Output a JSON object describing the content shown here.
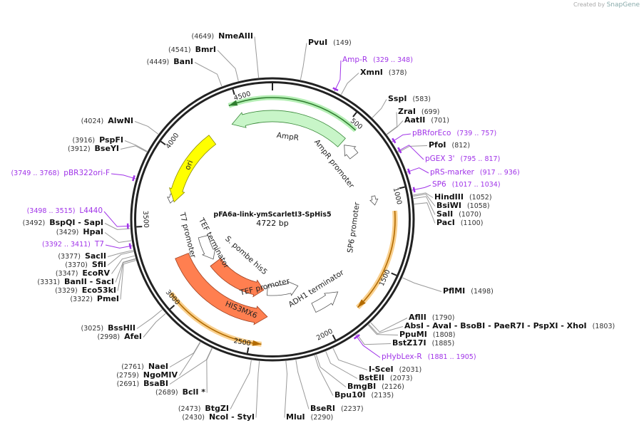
{
  "credit": {
    "prefix": "Created by",
    "brand": "SnapGene"
  },
  "plasmid": {
    "name": "pFA6a-link-ymScarletI3-SpHis5",
    "length_label": "4722 bp",
    "length": 4722
  },
  "ring": {
    "ticks": [
      "500",
      "1000",
      "1500",
      "2000",
      "2500",
      "3000",
      "3500",
      "4000",
      "4500"
    ]
  },
  "colors": {
    "ampr": "#c8f5c8",
    "ampr_edge": "#3a8a3a",
    "ori": "#ffff00",
    "marker": "#ff7f50",
    "promoter": "#ffffff",
    "primer": "#a033e8",
    "highlight_green": "#9be39b",
    "highlight_orange": "#f7c67a"
  },
  "features": [
    {
      "name": "AmpR",
      "start": 4420,
      "end": 551,
      "dir": "rev",
      "kind": "ampr"
    },
    {
      "name": "AmpR promoter",
      "start": 577,
      "end": 682,
      "dir": "rev",
      "kind": "promoter"
    },
    {
      "name": "SP6 promoter",
      "start": 1010,
      "end": 1076,
      "dir": "fwd",
      "kind": "promoter"
    },
    {
      "name": "ADH1 terminator",
      "start": 1810,
      "end": 2033,
      "dir": "rev",
      "kind": "promoter"
    },
    {
      "name": "TEF promoter",
      "start": 2086,
      "end": 2414,
      "dir": "rev",
      "kind": "promoter"
    },
    {
      "name": "HIS3MX6",
      "start": 2400,
      "end": 3253,
      "dir": "rev",
      "kind": "marker"
    },
    {
      "name": "S. pombe his5",
      "start": 2453,
      "end": 3056,
      "dir": "rev",
      "kind": "marker"
    },
    {
      "name": "TEF terminator",
      "start": 3096,
      "end": 3358,
      "dir": "rev",
      "kind": "promoter"
    },
    {
      "name": "T7 promoter",
      "start": 3660,
      "end": 3725,
      "dir": "rev",
      "kind": "promoter"
    },
    {
      "name": "ori",
      "start": 3673,
      "end": 4237,
      "dir": "rev",
      "kind": "ori"
    }
  ],
  "highlights": [
    {
      "start": 4447,
      "end": 564,
      "dir": "rev",
      "kind": "green"
    },
    {
      "start": 1128,
      "end": 1784,
      "dir": "fwd",
      "kind": "orange"
    },
    {
      "start": 2427,
      "end": 3069,
      "dir": "rev",
      "kind": "orange"
    }
  ],
  "sites": [
    {
      "name": "NmeAIII",
      "pos": 4649,
      "label": "(4649)"
    },
    {
      "name": "BmrI",
      "pos": 4541,
      "label": "(4541)"
    },
    {
      "name": "BanI",
      "pos": 4449,
      "label": "(4449)"
    },
    {
      "name": "PvuI",
      "pos": 149,
      "label": "(149)"
    },
    {
      "name": "XmnI",
      "pos": 378,
      "label": "(378)"
    },
    {
      "name": "SspI",
      "pos": 583,
      "label": "(583)"
    },
    {
      "name": "ZraI",
      "pos": 699,
      "label": "(699)"
    },
    {
      "name": "AatII",
      "pos": 701,
      "label": "(701)"
    },
    {
      "name": "PfoI",
      "pos": 812,
      "label": "(812)"
    },
    {
      "name": "HindIII",
      "pos": 1052,
      "label": "(1052)"
    },
    {
      "name": "BsiWI",
      "pos": 1058,
      "label": "(1058)"
    },
    {
      "name": "SalI",
      "pos": 1070,
      "label": "(1070)"
    },
    {
      "name": "PacI",
      "pos": 1100,
      "label": "(1100)"
    },
    {
      "name": "PflMI",
      "pos": 1498,
      "label": "(1498)"
    },
    {
      "name": "AflII",
      "pos": 1790,
      "label": "(1790)"
    },
    {
      "name": "AbsI  - AvaI   - BsoBI   - PaeR7I   - PspXI   - XhoI",
      "pos": 1803,
      "label": "(1803)"
    },
    {
      "name": "PpuMI",
      "pos": 1808,
      "label": "(1808)"
    },
    {
      "name": "BstZ17I",
      "pos": 1885,
      "label": "(1885)"
    },
    {
      "name": "I-SceI",
      "pos": 2031,
      "label": "(2031)"
    },
    {
      "name": "BstEII",
      "pos": 2073,
      "label": "(2073)"
    },
    {
      "name": "BmgBI",
      "pos": 2126,
      "label": "(2126)"
    },
    {
      "name": "Bpu10I",
      "pos": 2135,
      "label": "(2135)"
    },
    {
      "name": "BseRI",
      "pos": 2237,
      "label": "(2237)"
    },
    {
      "name": "MluI",
      "pos": 2290,
      "label": "(2290)"
    },
    {
      "name": "BtgZI",
      "pos": 2473,
      "label": "(2473)"
    },
    {
      "name": "NcoI  - StyI",
      "pos": 2430,
      "label": "(2430)"
    },
    {
      "name": "NaeI",
      "pos": 2761,
      "label": "(2761)"
    },
    {
      "name": "NgoMIV",
      "pos": 2759,
      "label": "(2759)"
    },
    {
      "name": "BsaBI",
      "pos": 2691,
      "label": "(2691)"
    },
    {
      "name": "BclI *",
      "pos": 2689,
      "label": "(2689)"
    },
    {
      "name": "BssHII",
      "pos": 3025,
      "label": "(3025)"
    },
    {
      "name": "AfeI",
      "pos": 2998,
      "label": "(2998)"
    },
    {
      "name": "PmeI",
      "pos": 3322,
      "label": "(3322)"
    },
    {
      "name": "Eco53kI",
      "pos": 3329,
      "label": "(3329)"
    },
    {
      "name": "BanII  - SacI",
      "pos": 3331,
      "label": "(3331)"
    },
    {
      "name": "EcoRV",
      "pos": 3347,
      "label": "(3347)"
    },
    {
      "name": "SfiI",
      "pos": 3370,
      "label": "(3370)"
    },
    {
      "name": "SacII",
      "pos": 3377,
      "label": "(3377)"
    },
    {
      "name": "HpaI",
      "pos": 3429,
      "label": "(3429)"
    },
    {
      "name": "BspQI  - SapI",
      "pos": 3492,
      "label": "(3492)"
    },
    {
      "name": "AlwNI",
      "pos": 4024,
      "label": "(4024)"
    },
    {
      "name": "PspFI",
      "pos": 3916,
      "label": "(3916)"
    },
    {
      "name": "BseYI",
      "pos": 3912,
      "label": "(3912)"
    }
  ],
  "primers": [
    {
      "name": "Amp-R",
      "start": 329,
      "end": 348,
      "label": "(329 .. 348)"
    },
    {
      "name": "pBRforEco",
      "start": 739,
      "end": 757,
      "label": "(739 .. 757)"
    },
    {
      "name": "pGEX 3'",
      "start": 795,
      "end": 817,
      "label": "(795 .. 817)"
    },
    {
      "name": "pRS-marker",
      "start": 917,
      "end": 936,
      "label": "(917 .. 936)"
    },
    {
      "name": "SP6",
      "start": 1017,
      "end": 1034,
      "label": "(1017 .. 1034)"
    },
    {
      "name": "pHybLex-R",
      "start": 1881,
      "end": 1905,
      "label": "(1881 .. 1905)"
    },
    {
      "name": "T7",
      "start": 3392,
      "end": 3411,
      "label": "(3392 .. 3411)"
    },
    {
      "name": "L4440",
      "start": 3498,
      "end": 3515,
      "label": "(3498 .. 3515)"
    },
    {
      "name": "pBR322ori-F",
      "start": 3749,
      "end": 3768,
      "label": "(3749 .. 3768)"
    }
  ]
}
